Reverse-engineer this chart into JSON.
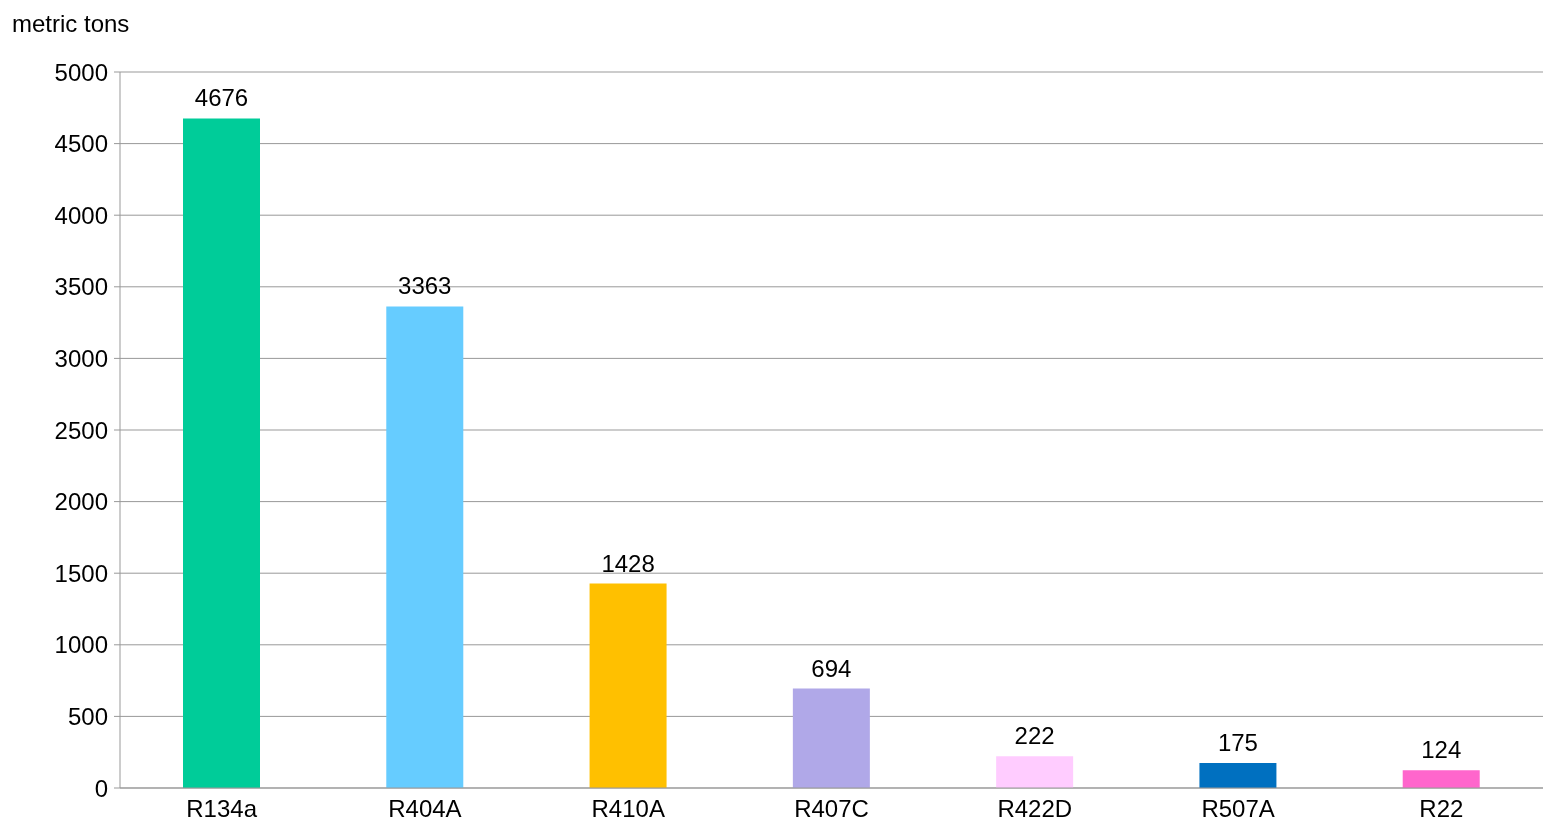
{
  "chart_data": {
    "type": "bar",
    "ylabel": "metric tons",
    "categories": [
      "R134a",
      "R404A",
      "R410A",
      "R407C",
      "R422D",
      "R507A",
      "R22"
    ],
    "values": [
      4676,
      3363,
      1428,
      694,
      222,
      175,
      124
    ],
    "colors": [
      "#00cc99",
      "#66ccff",
      "#ffc000",
      "#b0a8e8",
      "#ffccff",
      "#0070c0",
      "#ff66cc"
    ],
    "ylim": [
      0,
      5000
    ],
    "yticks": [
      0,
      500,
      1000,
      1500,
      2000,
      2500,
      3000,
      3500,
      4000,
      4500,
      5000
    ],
    "grid": "y",
    "data_labels": true,
    "legend": false
  }
}
